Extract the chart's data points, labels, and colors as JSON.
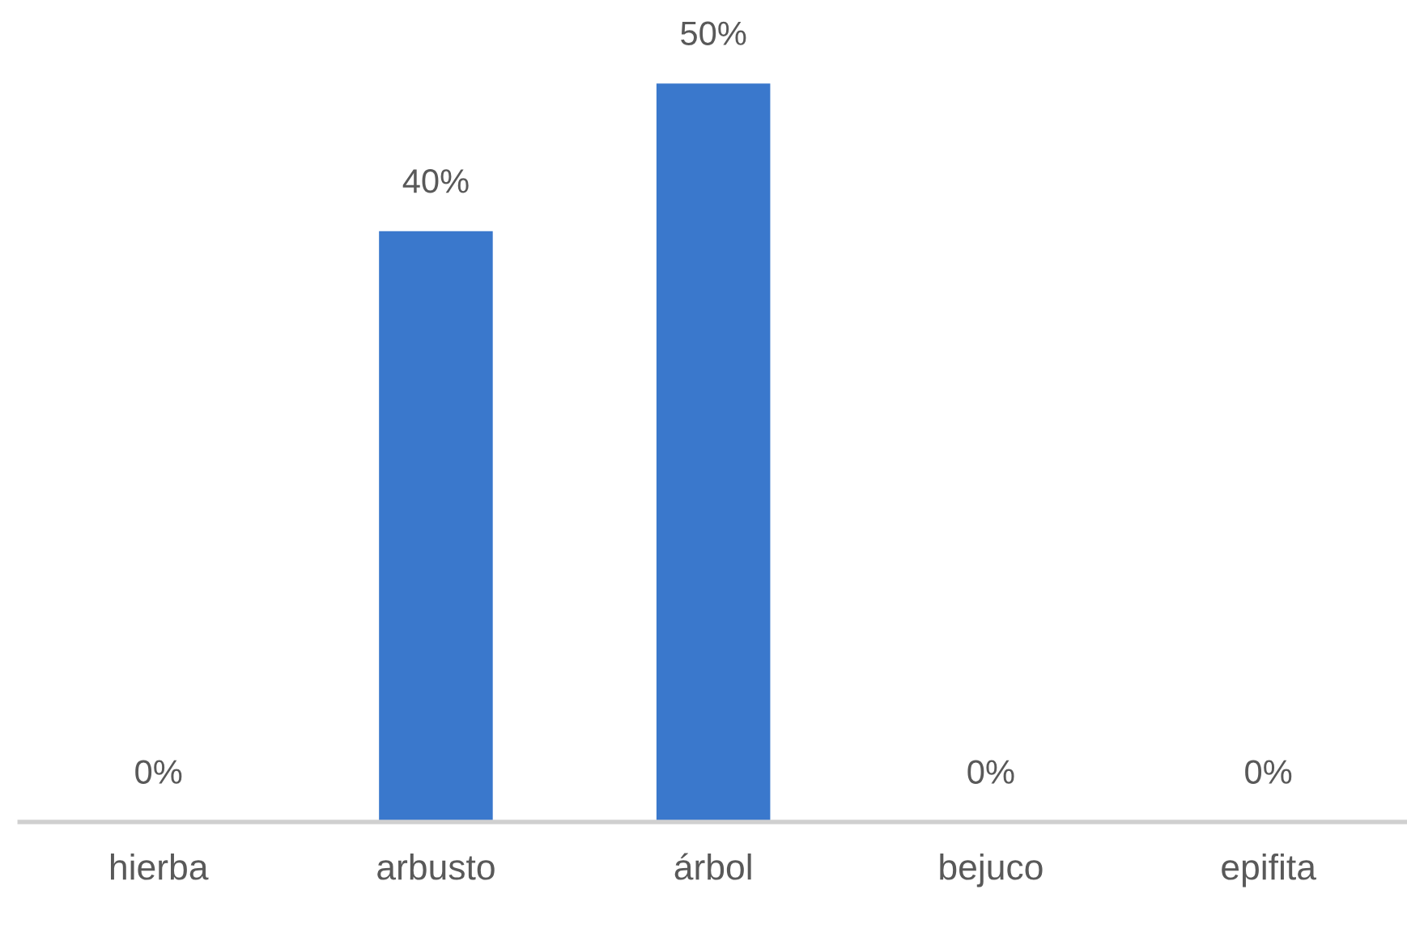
{
  "chart_data": {
    "type": "bar",
    "categories": [
      "hierba",
      "arbusto",
      "árbol",
      "bejuco",
      "epifita"
    ],
    "values": [
      0,
      40,
      50,
      0,
      0
    ],
    "value_labels": [
      "0%",
      "40%",
      "50%",
      "0%",
      "0%"
    ],
    "color": "#3a78cc",
    "grid": false,
    "legend": false
  }
}
